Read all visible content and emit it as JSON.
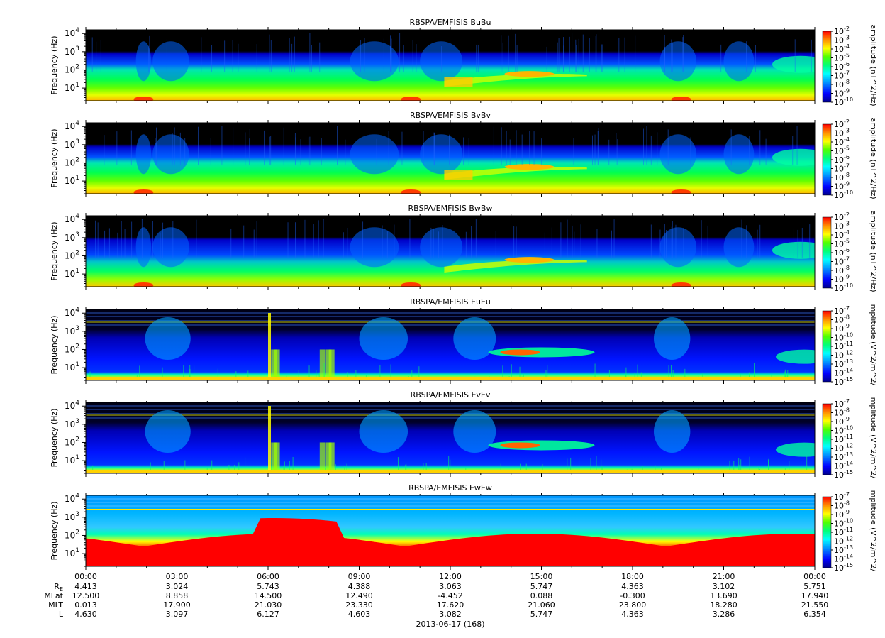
{
  "panels": [
    {
      "title": "RBSPA/EMFISIS  BuBu",
      "ylabel": "Frequency (Hz)",
      "cbar_label": "amplitude (nT^2/Hz)",
      "cbar_exponents": [
        "-2",
        "-3",
        "-4",
        "-5",
        "-6",
        "-7",
        "-8",
        "-9",
        "-10"
      ],
      "cbar_min_exp": -10,
      "cbar_max_exp": -2,
      "kind": "B"
    },
    {
      "title": "RBSPA/EMFISIS  BvBv",
      "ylabel": "Frequency (Hz)",
      "cbar_label": "amplitude (nT^2/Hz)",
      "cbar_exponents": [
        "-2",
        "-3",
        "-4",
        "-5",
        "-6",
        "-7",
        "-8",
        "-9",
        "-10"
      ],
      "cbar_min_exp": -10,
      "cbar_max_exp": -2,
      "kind": "B"
    },
    {
      "title": "RBSPA/EMFISIS  BwBw",
      "ylabel": "Frequency (Hz)",
      "cbar_label": "amplitude (nT^2/Hz)",
      "cbar_exponents": [
        "-2",
        "-3",
        "-4",
        "-5",
        "-6",
        "-7",
        "-8",
        "-9",
        "-10"
      ],
      "cbar_min_exp": -10,
      "cbar_max_exp": -2,
      "kind": "Bw"
    },
    {
      "title": "RBSPA/EMFISIS  EuEu",
      "ylabel": "Frequency (Hz)",
      "cbar_label": "mplitude (V^2/m^2/",
      "cbar_exponents": [
        "-7",
        "-8",
        "-9",
        "-10",
        "-11",
        "-12",
        "-13",
        "-14",
        "-15"
      ],
      "cbar_min_exp": -15,
      "cbar_max_exp": -7,
      "kind": "E"
    },
    {
      "title": "RBSPA/EMFISIS  EvEv",
      "ylabel": "Frequency (Hz)",
      "cbar_label": "mplitude (V^2/m^2/",
      "cbar_exponents": [
        "-7",
        "-8",
        "-9",
        "-10",
        "-11",
        "-12",
        "-13",
        "-14",
        "-15"
      ],
      "cbar_min_exp": -15,
      "cbar_max_exp": -7,
      "kind": "E"
    },
    {
      "title": "RBSPA/EMFISIS  EwEw",
      "ylabel": "Frequency (Hz)",
      "cbar_label": "mplitude (V^2/m^2/",
      "cbar_exponents": [
        "-7",
        "-8",
        "-9",
        "-10",
        "-11",
        "-12",
        "-13",
        "-14",
        "-15"
      ],
      "cbar_min_exp": -15,
      "cbar_max_exp": -7,
      "kind": "Ew"
    }
  ],
  "y_ticks": [
    {
      "base": "10",
      "exp": "4"
    },
    {
      "base": "10",
      "exp": "3"
    },
    {
      "base": "10",
      "exp": "2"
    },
    {
      "base": "10",
      "exp": "1"
    }
  ],
  "x_ticks": [
    "00:00",
    "03:00",
    "06:00",
    "09:00",
    "12:00",
    "15:00",
    "18:00",
    "21:00",
    "00:00"
  ],
  "ephemeris": {
    "rows": [
      {
        "label": "R",
        "sub": "E",
        "values": [
          "4.413",
          "3.024",
          "5.743",
          "4.388",
          "3.063",
          "5.747",
          "4.363",
          "3.102",
          "5.751"
        ]
      },
      {
        "label": "MLat",
        "sub": "",
        "values": [
          "12.500",
          "8.858",
          "14.500",
          "12.490",
          "-4.452",
          "0.088",
          "-0.300",
          "13.690",
          "17.940"
        ]
      },
      {
        "label": "MLT",
        "sub": "",
        "values": [
          "0.013",
          "17.900",
          "21.030",
          "23.330",
          "17.620",
          "21.060",
          "23.800",
          "18.280",
          "21.550"
        ]
      },
      {
        "label": "L",
        "sub": "",
        "values": [
          "4.630",
          "3.097",
          "6.127",
          "4.603",
          "3.082",
          "5.747",
          "4.363",
          "3.286",
          "6.354"
        ]
      }
    ]
  },
  "date_label": "2013-06-17 (168)",
  "chart_data": {
    "type": "heatmap",
    "x_range": [
      "00:00",
      "00:00"
    ],
    "y_range_hz": [
      2,
      16000
    ],
    "y_scale": "log",
    "colormap": [
      "#0000a0",
      "#0000ff",
      "#0080ff",
      "#00ffff",
      "#00ff80",
      "#00ff00",
      "#80ff00",
      "#ffff00",
      "#ff8000",
      "#ff0000"
    ],
    "background": "#000000"
  }
}
